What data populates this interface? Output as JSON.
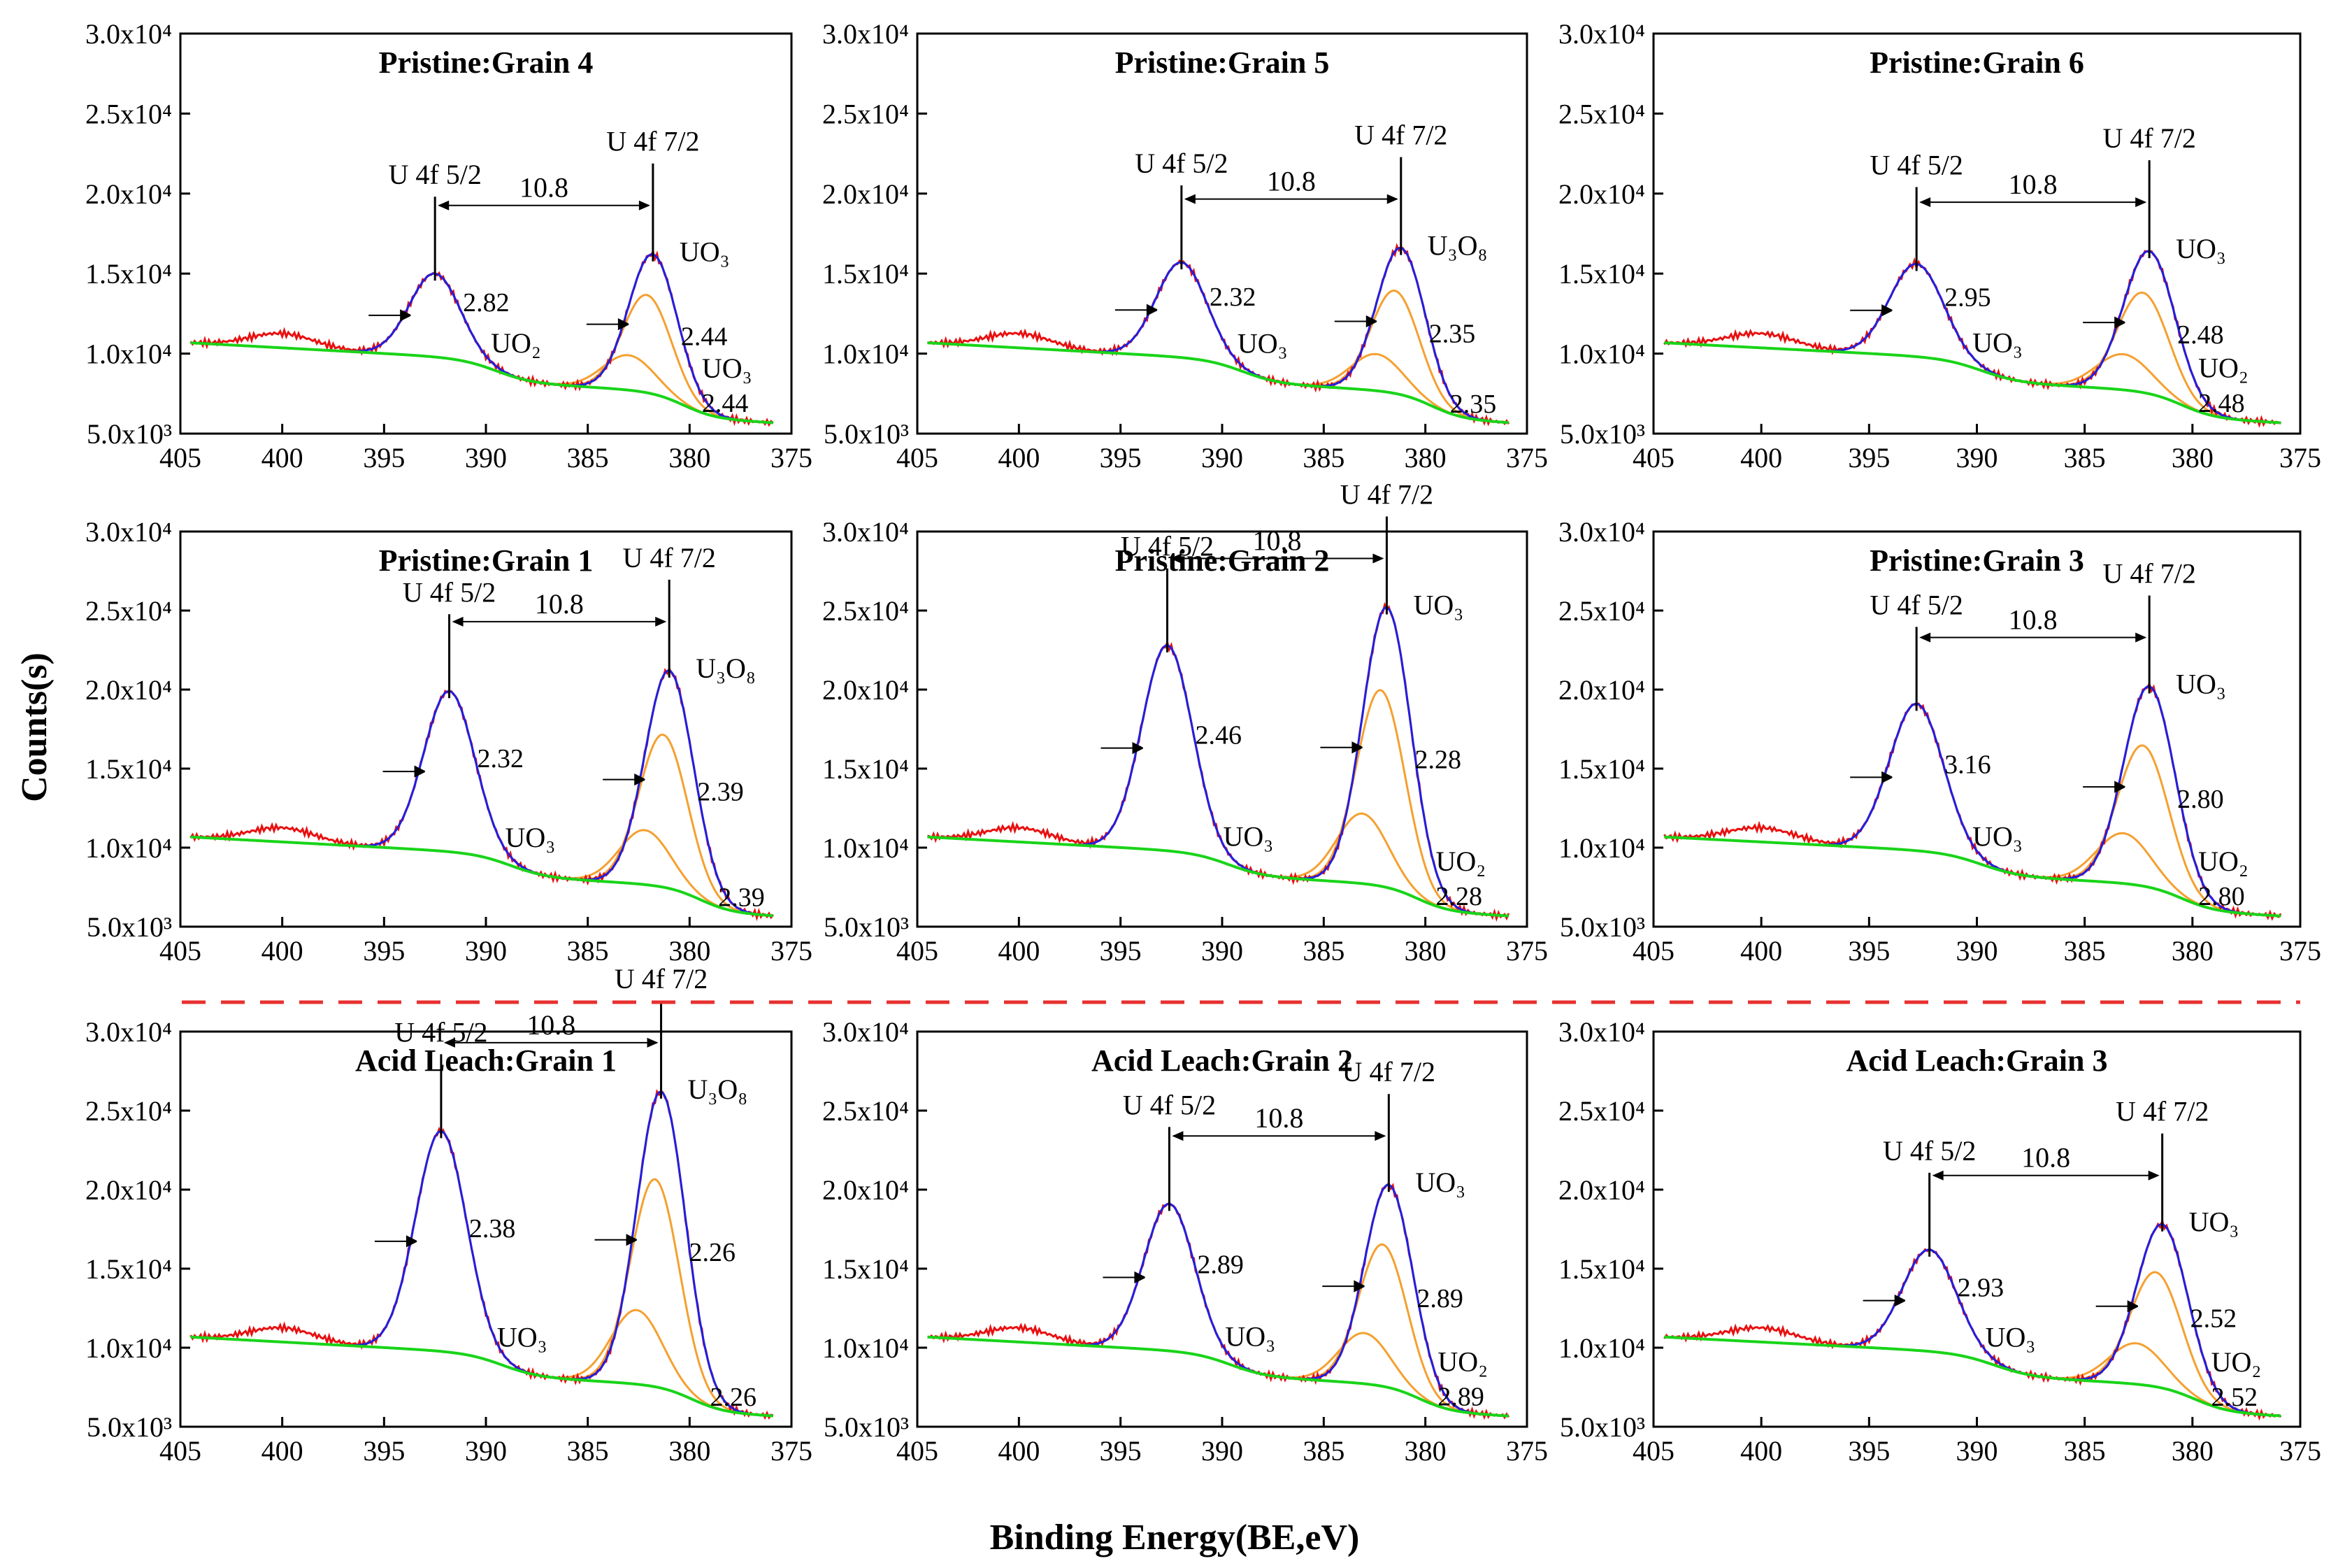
{
  "chart_data": {
    "type": "line",
    "xlabel": "Binding Energy(BE,eV)",
    "ylabel": "Counts(s)",
    "xlim": [
      405,
      375
    ],
    "ylim": [
      5000,
      30000
    ],
    "xticks": [
      "405",
      "400",
      "395",
      "390",
      "385",
      "380",
      "375"
    ],
    "yticks": [
      "5.0x10³",
      "1.0x10⁴",
      "1.5x10⁴",
      "2.0x10⁴",
      "2.5x10⁴",
      "3.0x10⁴"
    ],
    "colors": {
      "raw": "#e81010",
      "envelope": "#2020e0",
      "component": "#f5a030",
      "background": "#19d419",
      "divider": "#e83030"
    },
    "panels": [
      {
        "title": "Pristine:Grain 4",
        "p1": 392.5,
        "p2": 381.8,
        "h1": 15000,
        "h2": 16200,
        "sep": "10.8",
        "labels": [
          {
            "t": "U 4f 5/2"
          },
          {
            "t": "U 4f 7/2"
          },
          {
            "t": "UO₃"
          },
          {
            "t": "UO₂"
          },
          {
            "t": "UO₃"
          }
        ],
        "fwhm": [
          "2.82",
          "2.44",
          "2.44"
        ]
      },
      {
        "title": "Pristine:Grain 5",
        "p1": 392.0,
        "p2": 381.2,
        "h1": 15700,
        "h2": 16600,
        "sep": "10.8",
        "labels": [
          {
            "t": "U 4f 5/2"
          },
          {
            "t": "U 4f 7/2"
          },
          {
            "t": "U₃O₈"
          },
          {
            "t": "UO₃"
          }
        ],
        "fwhm": [
          "2.32",
          "2.35",
          "2.35"
        ]
      },
      {
        "title": "Pristine:Grain 6",
        "p1": 392.8,
        "p2": 382.0,
        "h1": 15600,
        "h2": 16400,
        "sep": "10.8",
        "labels": [
          {
            "t": "U 4f 5/2"
          },
          {
            "t": "U 4f 7/2"
          },
          {
            "t": "UO₃"
          },
          {
            "t": "UO₃"
          },
          {
            "t": "UO₂"
          }
        ],
        "fwhm": [
          "2.95",
          "2.48",
          "2.48"
        ]
      },
      {
        "title": "Pristine:Grain 1",
        "p1": 391.8,
        "p2": 381.0,
        "h1": 19900,
        "h2": 21200,
        "sep": "10.8",
        "labels": [
          {
            "t": "U 4f 5/2"
          },
          {
            "t": "U 4f 7/2"
          },
          {
            "t": "U₃O₈"
          },
          {
            "t": "UO₃"
          }
        ],
        "fwhm": [
          "2.32",
          "2.39",
          "2.39"
        ]
      },
      {
        "title": "Pristine:Grain 2",
        "p1": 392.7,
        "p2": 381.9,
        "h1": 22800,
        "h2": 25200,
        "sep": "10.8",
        "labels": [
          {
            "t": "U 4f 5/2"
          },
          {
            "t": "U 4f 7/2"
          },
          {
            "t": "UO₃"
          },
          {
            "t": "UO₃"
          },
          {
            "t": "UO₂"
          }
        ],
        "fwhm": [
          "2.46",
          "2.28",
          "2.28"
        ]
      },
      {
        "title": "Pristine:Grain 3",
        "p1": 392.8,
        "p2": 382.0,
        "h1": 19100,
        "h2": 20200,
        "sep": "10.8",
        "labels": [
          {
            "t": "U 4f 5/2"
          },
          {
            "t": "U 4f 7/2"
          },
          {
            "t": "UO₃"
          },
          {
            "t": "UO₃"
          },
          {
            "t": "UO₂"
          }
        ],
        "fwhm": [
          "3.16",
          "2.80",
          "2.80"
        ]
      },
      {
        "title": "Acid Leach:Grain 1",
        "p1": 392.2,
        "p2": 381.4,
        "h1": 23700,
        "h2": 26200,
        "sep": "10.8",
        "labels": [
          {
            "t": "U 4f 5/2"
          },
          {
            "t": "U 4f 7/2"
          },
          {
            "t": "U₃O₈"
          },
          {
            "t": "UO₃"
          }
        ],
        "fwhm": [
          "2.38",
          "2.26",
          "2.26"
        ]
      },
      {
        "title": "Acid Leach:Grain 2",
        "p1": 392.6,
        "p2": 381.8,
        "h1": 19100,
        "h2": 20300,
        "sep": "10.8",
        "labels": [
          {
            "t": "U 4f 5/2"
          },
          {
            "t": "U 4f 7/2"
          },
          {
            "t": "UO₃"
          },
          {
            "t": "UO₃"
          },
          {
            "t": "UO₂"
          }
        ],
        "fwhm": [
          "2.89",
          "2.89",
          "2.89"
        ]
      },
      {
        "title": "Acid Leach:Grain 3",
        "p1": 392.2,
        "p2": 381.4,
        "h1": 16200,
        "h2": 17800,
        "sep": "10.8",
        "labels": [
          {
            "t": "U 4f 5/2"
          },
          {
            "t": "U 4f 7/2"
          },
          {
            "t": "UO₃"
          },
          {
            "t": "UO₃"
          },
          {
            "t": "UO₂"
          }
        ],
        "fwhm": [
          "2.93",
          "2.52",
          "2.52"
        ]
      }
    ]
  }
}
